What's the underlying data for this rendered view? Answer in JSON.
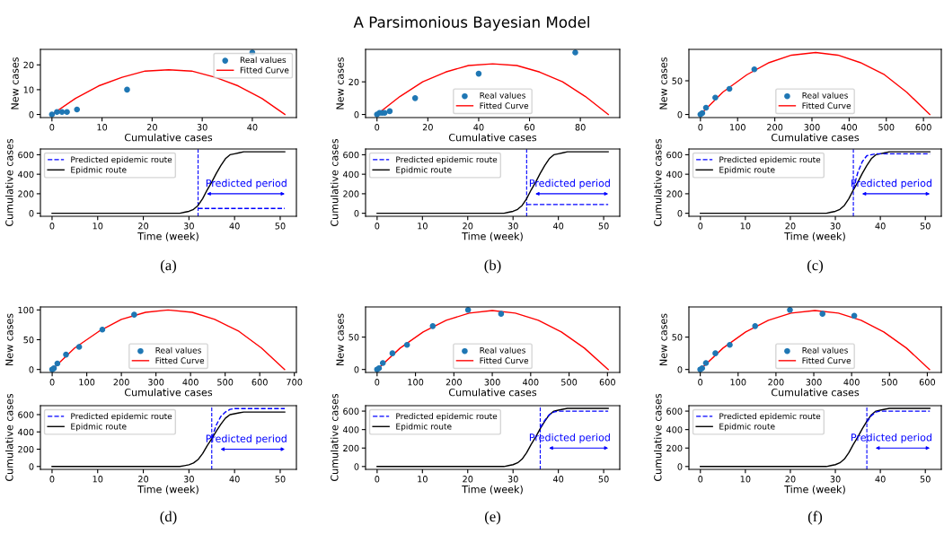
{
  "chart_data": [
    {
      "type": "scatter",
      "xlabel": "Cumulative cases",
      "ylabel": "New cases",
      "xlim": [
        -2.3,
        48.8
      ],
      "ylim": [
        -1.25,
        26.25
      ],
      "xticks": [
        0,
        10,
        20,
        30,
        40
      ],
      "yticks": [
        0,
        10,
        20
      ],
      "legend": "top right",
      "series": [
        {
          "name": "Real values",
          "type": "scatter",
          "marker": "circle",
          "color": "#1f77b4",
          "x": [
            0,
            1,
            2,
            3,
            5,
            15,
            40
          ],
          "values": [
            0,
            1,
            1,
            1,
            2,
            10,
            25
          ]
        },
        {
          "name": "Fitted Curve",
          "type": "line",
          "color": "#ff0000",
          "x": [
            0,
            4.7,
            9.3,
            14,
            18.6,
            23.3,
            27.9,
            32.6,
            37.2,
            41.9,
            46.5
          ],
          "values": [
            0,
            6.5,
            11.5,
            15,
            17.5,
            18,
            17.5,
            15,
            11.5,
            6.5,
            0
          ]
        }
      ],
      "annotations": [
        "A Parsimonious Bayesian Model"
      ]
    },
    {
      "type": "line",
      "xlabel": "Time (week)",
      "ylabel": "Cumulative cases",
      "xlim": [
        -2.55,
        53.55
      ],
      "ylim": [
        -31,
        659
      ],
      "xticks": [
        0,
        10,
        20,
        30,
        40,
        50
      ],
      "yticks": [
        0,
        200,
        400,
        600
      ],
      "legend": "top left",
      "series": [
        {
          "name": "Predicted epidemic route",
          "line_style": "dashed",
          "color": "#0000ff",
          "x": [
            32,
            51
          ],
          "values": [
            50,
            50
          ]
        },
        {
          "name": "Epidmic route",
          "line_style": "solid",
          "color": "#000000",
          "x": [
            0,
            28,
            29,
            30,
            31,
            32,
            33,
            34,
            35,
            36,
            37,
            38,
            39,
            40,
            41,
            42,
            51
          ],
          "values": [
            0,
            0,
            10,
            20,
            40,
            80,
            150,
            240,
            320,
            410,
            490,
            560,
            600,
            610,
            620,
            630,
            630
          ]
        }
      ],
      "ref_lines": [
        {
          "axis": "x",
          "value": 32,
          "color": "#0000ff",
          "line_style": "dashed"
        }
      ],
      "annotations": [
        {
          "text": "Predicted period",
          "x": 32,
          "y": 200
        },
        "(a)"
      ]
    },
    {
      "type": "scatter",
      "xlabel": "Cumulative cases",
      "ylabel": "New cases",
      "xlim": [
        -4.5,
        95.5
      ],
      "ylim": [
        -1.9,
        39.9
      ],
      "xticks": [
        0,
        20,
        40,
        60,
        80
      ],
      "yticks": [
        0,
        20
      ],
      "legend": "bottom",
      "series": [
        {
          "name": "Real values",
          "type": "scatter",
          "marker": "circle",
          "color": "#1f77b4",
          "x": [
            0,
            1,
            2,
            3,
            5,
            15,
            40,
            78
          ],
          "values": [
            0,
            1,
            1,
            1,
            2,
            10,
            25,
            38
          ]
        },
        {
          "name": "Fitted Curve",
          "type": "line",
          "color": "#ff0000",
          "x": [
            0,
            9,
            18,
            27,
            36,
            45.5,
            55,
            64,
            73,
            82,
            91
          ],
          "values": [
            0,
            11,
            20,
            26,
            30,
            31,
            30,
            26,
            20,
            11,
            0
          ]
        }
      ]
    },
    {
      "type": "line",
      "xlabel": "Time (week)",
      "ylabel": "Cumulative cases",
      "xlim": [
        -2.55,
        53.55
      ],
      "ylim": [
        -31,
        659
      ],
      "xticks": [
        0,
        10,
        20,
        30,
        40,
        50
      ],
      "yticks": [
        0,
        200,
        400,
        600
      ],
      "legend": "top left",
      "series": [
        {
          "name": "Predicted epidemic route",
          "line_style": "dashed",
          "color": "#0000ff",
          "x": [
            33,
            51
          ],
          "values": [
            90,
            90
          ]
        },
        {
          "name": "Epidmic route",
          "line_style": "solid",
          "color": "#000000",
          "x": [
            0,
            28,
            29,
            30,
            31,
            32,
            33,
            34,
            35,
            36,
            37,
            38,
            39,
            40,
            41,
            42,
            51
          ],
          "values": [
            0,
            0,
            10,
            20,
            40,
            80,
            150,
            240,
            320,
            410,
            490,
            560,
            600,
            610,
            620,
            630,
            630
          ]
        }
      ],
      "ref_lines": [
        {
          "axis": "x",
          "value": 33,
          "color": "#0000ff",
          "line_style": "dashed"
        }
      ],
      "annotations": [
        {
          "text": "Predicted period",
          "x": 33,
          "y": 200
        },
        "(b)"
      ]
    },
    {
      "type": "scatter",
      "xlabel": "Cumulative cases",
      "ylabel": "New cases",
      "xlim": [
        -31,
        648
      ],
      "ylim": [
        -4.6,
        96.6
      ],
      "xticks": [
        0,
        100,
        200,
        300,
        400,
        500,
        600
      ],
      "yticks": [
        0,
        50
      ],
      "legend": "bottom",
      "series": [
        {
          "name": "Real values",
          "type": "scatter",
          "marker": "circle",
          "color": "#1f77b4",
          "x": [
            0,
            5,
            15,
            40,
            78,
            145
          ],
          "values": [
            0,
            2,
            10,
            25,
            38,
            67
          ]
        },
        {
          "name": "Fitted Curve",
          "type": "line",
          "color": "#ff0000",
          "x": [
            0,
            60,
            125,
            185,
            245,
            310,
            370,
            430,
            495,
            555,
            617
          ],
          "values": [
            0,
            33,
            59,
            77,
            88,
            92,
            88,
            77,
            59,
            33,
            0
          ]
        }
      ]
    },
    {
      "type": "line",
      "xlabel": "Time (week)",
      "ylabel": "Cumulative cases",
      "xlim": [
        -2.55,
        53.55
      ],
      "ylim": [
        -31,
        659
      ],
      "xticks": [
        0,
        10,
        20,
        30,
        40,
        50
      ],
      "yticks": [
        0,
        200,
        400,
        600
      ],
      "legend": "top left",
      "series": [
        {
          "name": "Predicted epidemic route",
          "line_style": "dashed",
          "color": "#0000ff",
          "x": [
            34,
            35,
            36,
            37,
            38,
            39,
            51
          ],
          "values": [
            250,
            420,
            530,
            590,
            600,
            610,
            610
          ]
        },
        {
          "name": "Epidmic route",
          "line_style": "solid",
          "color": "#000000",
          "x": [
            0,
            28,
            29,
            30,
            31,
            32,
            33,
            34,
            35,
            36,
            37,
            38,
            39,
            40,
            41,
            42,
            51
          ],
          "values": [
            0,
            0,
            10,
            20,
            40,
            80,
            150,
            240,
            320,
            410,
            490,
            560,
            600,
            610,
            620,
            630,
            630
          ]
        }
      ],
      "ref_lines": [
        {
          "axis": "x",
          "value": 34,
          "color": "#0000ff",
          "line_style": "dashed"
        }
      ],
      "annotations": [
        {
          "text": "Predicted period",
          "x": 34,
          "y": 200
        },
        "(c)"
      ]
    },
    {
      "type": "scatter",
      "xlabel": "Cumulative cases",
      "ylabel": "New cases",
      "xlim": [
        -34,
        706
      ],
      "ylim": [
        -5,
        105
      ],
      "xticks": [
        0,
        100,
        200,
        300,
        400,
        500,
        600,
        700
      ],
      "yticks": [
        0,
        50,
        100
      ],
      "legend": "bottom",
      "series": [
        {
          "name": "Real values",
          "type": "scatter",
          "marker": "circle",
          "color": "#1f77b4",
          "x": [
            0,
            5,
            15,
            40,
            78,
            145,
            237
          ],
          "values": [
            0,
            2,
            10,
            25,
            38,
            67,
            92
          ]
        },
        {
          "name": "Fitted Curve",
          "type": "line",
          "color": "#ff0000",
          "x": [
            0,
            65,
            135,
            200,
            270,
            335,
            405,
            470,
            540,
            605,
            672
          ],
          "values": [
            0,
            36,
            64,
            84,
            96,
            100,
            96,
            84,
            64,
            36,
            0
          ]
        }
      ]
    },
    {
      "type": "line",
      "xlabel": "Time (week)",
      "ylabel": "Cumulative cases",
      "xlim": [
        -2.55,
        53.55
      ],
      "ylim": [
        -33.5,
        703.5
      ],
      "xticks": [
        0,
        10,
        20,
        30,
        40,
        50
      ],
      "yticks": [
        0,
        200,
        400,
        600
      ],
      "legend": "top left",
      "series": [
        {
          "name": "Predicted epidemic route",
          "line_style": "dashed",
          "color": "#0000ff",
          "x": [
            35,
            36,
            37,
            38,
            39,
            40,
            51
          ],
          "values": [
            330,
            480,
            580,
            630,
            660,
            670,
            670
          ]
        },
        {
          "name": "Epidmic route",
          "line_style": "solid",
          "color": "#000000",
          "x": [
            0,
            28,
            29,
            30,
            31,
            32,
            33,
            34,
            35,
            36,
            37,
            38,
            39,
            40,
            41,
            42,
            51
          ],
          "values": [
            0,
            0,
            10,
            20,
            40,
            80,
            150,
            240,
            320,
            410,
            490,
            560,
            600,
            610,
            620,
            630,
            630
          ]
        }
      ],
      "ref_lines": [
        {
          "axis": "x",
          "value": 35,
          "color": "#0000ff",
          "line_style": "dashed"
        }
      ],
      "annotations": [
        {
          "text": "Predicted period",
          "x": 35,
          "y": 200
        },
        "(d)"
      ]
    },
    {
      "type": "scatter",
      "xlabel": "Cumulative cases",
      "ylabel": "New cases",
      "xlim": [
        -30,
        632
      ],
      "ylim": [
        -4.6,
        96.6
      ],
      "xticks": [
        0,
        100,
        200,
        300,
        400,
        500,
        600
      ],
      "yticks": [
        0,
        50
      ],
      "legend": "bottom",
      "series": [
        {
          "name": "Real values",
          "type": "scatter",
          "marker": "circle",
          "color": "#1f77b4",
          "x": [
            0,
            5,
            15,
            40,
            78,
            145,
            237,
            323
          ],
          "values": [
            0,
            2,
            10,
            25,
            38,
            67,
            92,
            86
          ]
        },
        {
          "name": "Fitted Curve",
          "type": "line",
          "color": "#ff0000",
          "x": [
            0,
            60,
            120,
            180,
            240,
            300,
            360,
            420,
            480,
            540,
            602
          ],
          "values": [
            0,
            33,
            58,
            76,
            87,
            91,
            87,
            76,
            58,
            33,
            0
          ]
        }
      ]
    },
    {
      "type": "line",
      "xlabel": "Time (week)",
      "ylabel": "Cumulative cases",
      "xlim": [
        -2.55,
        53.55
      ],
      "ylim": [
        -31,
        659
      ],
      "xticks": [
        0,
        10,
        20,
        30,
        40,
        50
      ],
      "yticks": [
        0,
        200,
        400,
        600
      ],
      "legend": "top left",
      "series": [
        {
          "name": "Predicted epidemic route",
          "line_style": "dashed",
          "color": "#0000ff",
          "x": [
            36,
            37,
            38,
            39,
            40,
            51
          ],
          "values": [
            420,
            500,
            560,
            590,
            600,
            600
          ]
        },
        {
          "name": "Epidmic route",
          "line_style": "solid",
          "color": "#000000",
          "x": [
            0,
            28,
            29,
            30,
            31,
            32,
            33,
            34,
            35,
            36,
            37,
            38,
            39,
            40,
            41,
            42,
            51
          ],
          "values": [
            0,
            0,
            10,
            20,
            40,
            80,
            150,
            240,
            320,
            410,
            490,
            560,
            600,
            610,
            620,
            630,
            630
          ]
        }
      ],
      "ref_lines": [
        {
          "axis": "x",
          "value": 36,
          "color": "#0000ff",
          "line_style": "dashed"
        }
      ],
      "annotations": [
        {
          "text": "Predicted period",
          "x": 36,
          "y": 200
        },
        "(e)"
      ]
    },
    {
      "type": "scatter",
      "xlabel": "Cumulative cases",
      "ylabel": "New cases",
      "xlim": [
        -30,
        637
      ],
      "ylim": [
        -4.6,
        96.6
      ],
      "xticks": [
        0,
        100,
        200,
        300,
        400,
        500,
        600
      ],
      "yticks": [
        0,
        50
      ],
      "legend": "bottom",
      "series": [
        {
          "name": "Real values",
          "type": "scatter",
          "marker": "circle",
          "color": "#1f77b4",
          "x": [
            0,
            5,
            15,
            40,
            78,
            145,
            237,
            323,
            407
          ],
          "values": [
            0,
            2,
            10,
            25,
            38,
            67,
            92,
            86,
            83
          ]
        },
        {
          "name": "Fitted Curve",
          "type": "line",
          "color": "#ff0000",
          "x": [
            0,
            60,
            120,
            180,
            240,
            303,
            365,
            425,
            485,
            545,
            606
          ],
          "values": [
            0,
            33,
            58,
            76,
            87,
            91,
            87,
            76,
            58,
            33,
            0
          ]
        }
      ]
    },
    {
      "type": "line",
      "xlabel": "Time (week)",
      "ylabel": "Cumulative cases",
      "xlim": [
        -2.55,
        53.55
      ],
      "ylim": [
        -31,
        659
      ],
      "xticks": [
        0,
        10,
        20,
        30,
        40,
        50
      ],
      "yticks": [
        0,
        200,
        400,
        600
      ],
      "legend": "top left",
      "series": [
        {
          "name": "Predicted epidemic route",
          "line_style": "dashed",
          "color": "#0000ff",
          "x": [
            37,
            38,
            39,
            40,
            51
          ],
          "values": [
            480,
            550,
            590,
            600,
            600
          ]
        },
        {
          "name": "Epidmic route",
          "line_style": "solid",
          "color": "#000000",
          "x": [
            0,
            28,
            29,
            30,
            31,
            32,
            33,
            34,
            35,
            36,
            37,
            38,
            39,
            40,
            41,
            42,
            51
          ],
          "values": [
            0,
            0,
            10,
            20,
            40,
            80,
            150,
            240,
            320,
            410,
            490,
            560,
            600,
            610,
            620,
            630,
            630
          ]
        }
      ],
      "ref_lines": [
        {
          "axis": "x",
          "value": 37,
          "color": "#0000ff",
          "line_style": "dashed"
        }
      ],
      "annotations": [
        {
          "text": "Predicted period",
          "x": 37,
          "y": 200
        },
        "(f)"
      ]
    }
  ]
}
